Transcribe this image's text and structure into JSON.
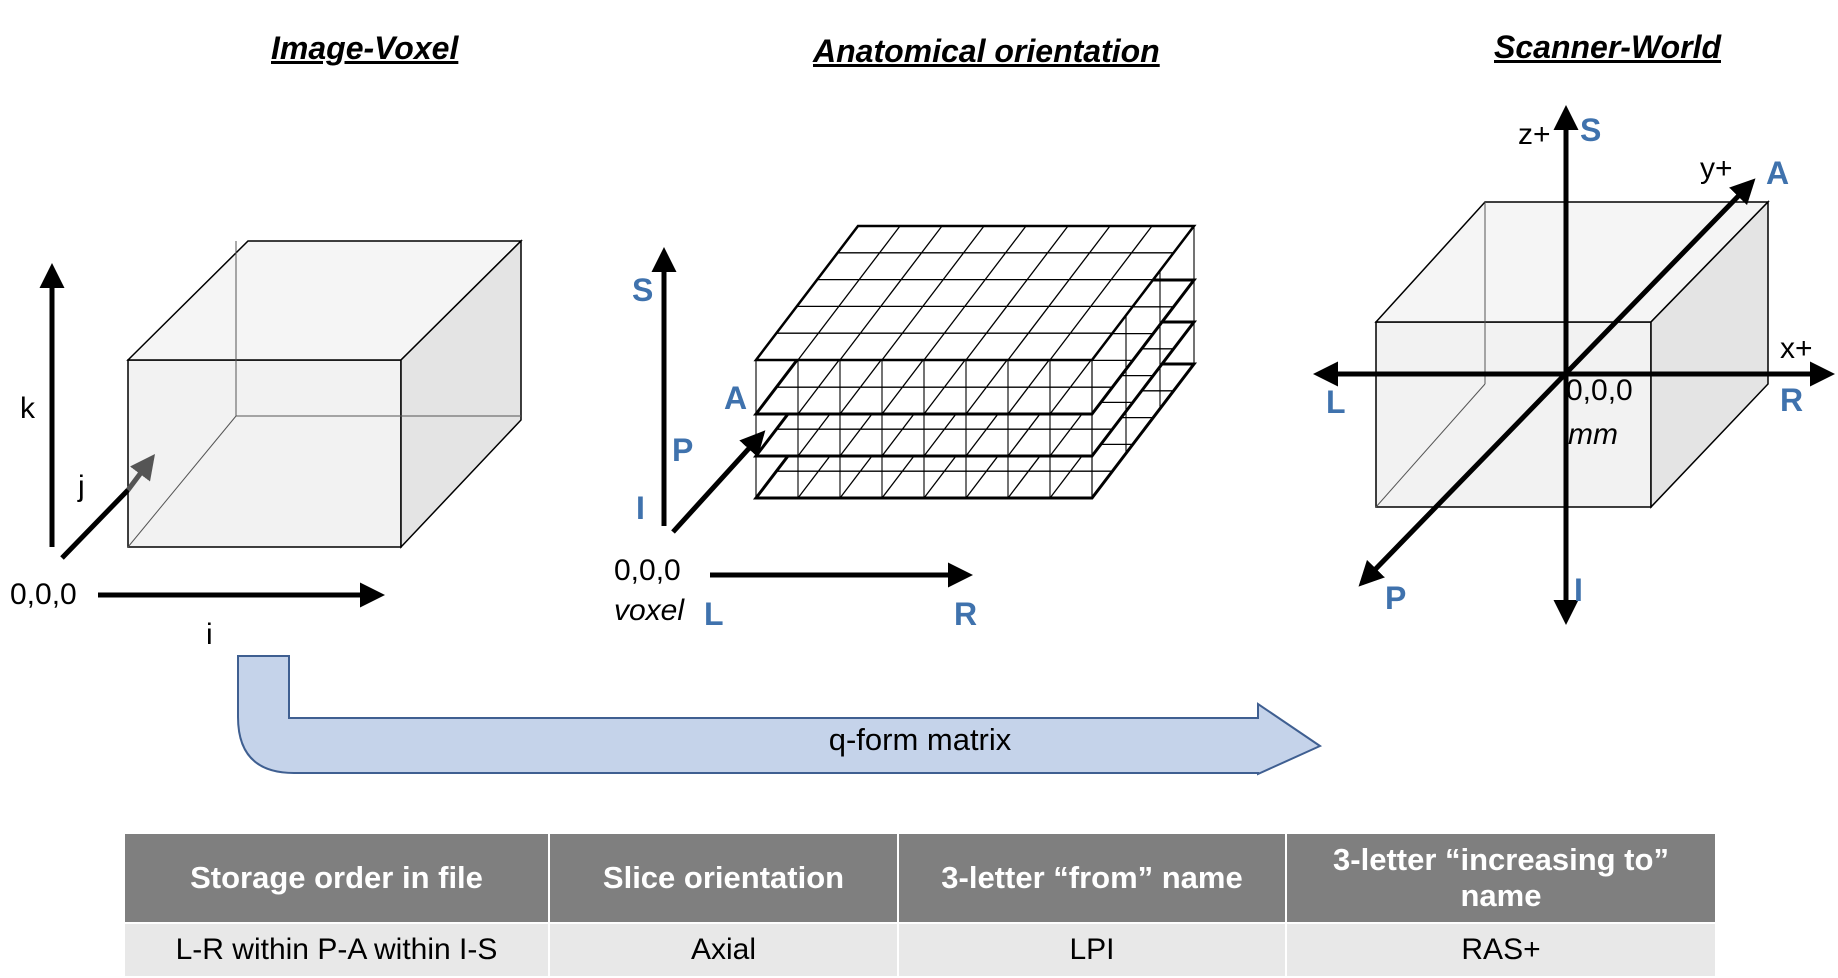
{
  "titles": {
    "image_voxel": "Image-Voxel",
    "anatomical": "Anatomical orientation",
    "scanner_world": "Scanner-World"
  },
  "image_voxel": {
    "axis_k": "k",
    "axis_j": "j",
    "axis_i": "i",
    "origin": "0,0,0"
  },
  "anatomical": {
    "S": "S",
    "A": "A",
    "P": "P",
    "I": "I",
    "L": "L",
    "R": "R",
    "origin": "0,0,0",
    "origin_unit": "voxel"
  },
  "scanner_world": {
    "z": "z+",
    "y": "y+",
    "x": "x+",
    "S": "S",
    "A": "A",
    "L": "L",
    "R": "R",
    "P": "P",
    "I": "I",
    "origin": "0,0,0",
    "origin_unit": "mm"
  },
  "arrow_label": "q-form matrix",
  "colors": {
    "orientation_letters": "#3f72ad",
    "arrow_fill": "#c5d3ea",
    "arrow_stroke": "#3f5f91",
    "table_header": "#7f7f7f",
    "table_cell": "#e8e8e8"
  },
  "table": {
    "headers": [
      "Storage order in file",
      "Slice orientation",
      "3-letter “from” name",
      "3-letter “increasing to” name"
    ],
    "rows": [
      [
        "L-R within P-A within I-S",
        "Axial",
        "LPI",
        "RAS+"
      ]
    ]
  }
}
